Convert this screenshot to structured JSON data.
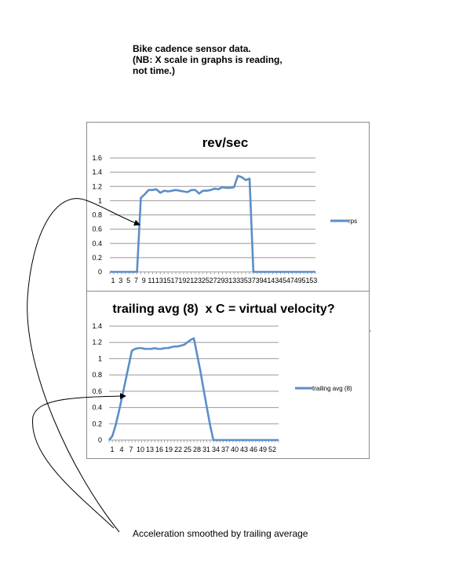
{
  "note": {
    "line1": "Bike cadence sensor data.",
    "line2": "(NB: X scale in graphs is reading,",
    "line3": "not time.)"
  },
  "caption": "Acceleration smoothed by trailing average",
  "colors": {
    "series": "#5b8ec8",
    "grid": "#999999",
    "border": "#8a8a8a"
  },
  "chart_data": [
    {
      "type": "line",
      "title": "rev/sec",
      "xlabel": "",
      "ylabel": "",
      "x_tick_labels": [
        "1",
        "3",
        "5",
        "7",
        "9",
        "11",
        "13",
        "15",
        "17",
        "19",
        "21",
        "23",
        "25",
        "27",
        "29",
        "31",
        "33",
        "35",
        "37",
        "39",
        "41",
        "43",
        "45",
        "47",
        "49",
        "51",
        "53"
      ],
      "ylim": [
        0,
        1.6
      ],
      "y_ticks": [
        "0",
        "0.2",
        "0.4",
        "0.6",
        "0.8",
        "1",
        "1.2",
        "1.4",
        "1.6"
      ],
      "grid": true,
      "legend_position": "right",
      "series": [
        {
          "name": "rps",
          "values": [
            0,
            0,
            0,
            0,
            0,
            0,
            0,
            0,
            1.04,
            1.09,
            1.15,
            1.15,
            1.16,
            1.11,
            1.14,
            1.13,
            1.14,
            1.15,
            1.14,
            1.13,
            1.12,
            1.15,
            1.15,
            1.1,
            1.14,
            1.14,
            1.15,
            1.17,
            1.16,
            1.19,
            1.18,
            1.18,
            1.19,
            1.35,
            1.33,
            1.29,
            1.31,
            0,
            0,
            0,
            0,
            0,
            0,
            0,
            0,
            0,
            0,
            0,
            0,
            0,
            0,
            0,
            0,
            0
          ]
        }
      ]
    },
    {
      "type": "line",
      "title": "trailing avg (8)  x C = virtual velocity?",
      "xlabel": "",
      "ylabel": "",
      "x_tick_labels": [
        "1",
        "4",
        "7",
        "10",
        "13",
        "16",
        "19",
        "22",
        "25",
        "28",
        "31",
        "34",
        "37",
        "40",
        "43",
        "46",
        "49",
        "52"
      ],
      "ylim": [
        0,
        1.4
      ],
      "y_ticks": [
        "0",
        "0.2",
        "0.4",
        "0.6",
        "0.8",
        "1",
        "1.2",
        "1.4"
      ],
      "grid": true,
      "legend_position": "right",
      "series": [
        {
          "name": "trailing avg (8)",
          "values": [
            0,
            0.05,
            0.18,
            0.35,
            0.53,
            0.72,
            0.91,
            1.1,
            1.12,
            1.13,
            1.13,
            1.12,
            1.12,
            1.12,
            1.13,
            1.12,
            1.12,
            1.13,
            1.13,
            1.14,
            1.15,
            1.15,
            1.16,
            1.17,
            1.2,
            1.23,
            1.25,
            1.05,
            0.85,
            0.62,
            0.4,
            0.18,
            0,
            0,
            0,
            0,
            0,
            0,
            0,
            0,
            0,
            0,
            0,
            0,
            0,
            0,
            0,
            0,
            0,
            0,
            0,
            0,
            0
          ]
        }
      ]
    }
  ]
}
